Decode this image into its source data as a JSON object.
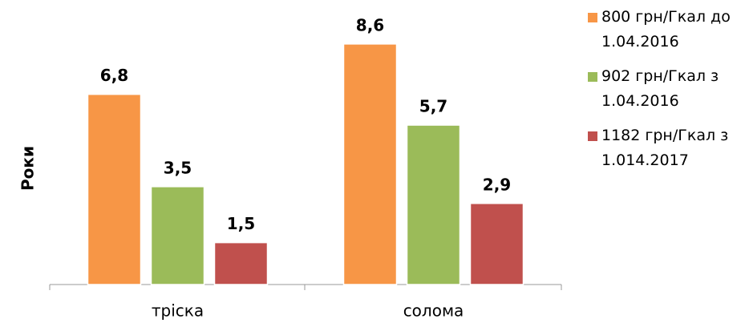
{
  "chart_data": {
    "type": "bar",
    "ylabel": "Роки",
    "categories": [
      "тріска",
      "солома"
    ],
    "series": [
      {
        "name": "800 грн/Гкал до 1.04.2016",
        "color": "#f79646",
        "values": [
          6.8,
          8.6
        ],
        "value_labels": [
          "6,8",
          "8,6"
        ]
      },
      {
        "name": "902 грн/Гкал з 1.04.2016",
        "color": "#9bbb59",
        "values": [
          3.5,
          5.7
        ],
        "value_labels": [
          "3,5",
          "5,7"
        ]
      },
      {
        "name": "1182 грн/Гкал з 1.014.2017",
        "color": "#c0504d",
        "values": [
          1.5,
          2.9
        ],
        "value_labels": [
          "1,5",
          "2,9"
        ]
      }
    ],
    "ylim": [
      0,
      10
    ],
    "legend": "right"
  }
}
